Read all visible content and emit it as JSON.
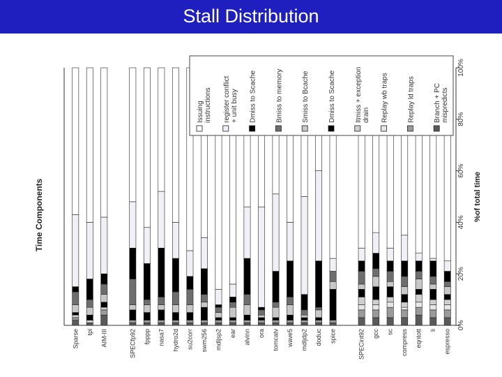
{
  "slide": {
    "title": "Stall Distribution",
    "title_bar_color": "#1f1fbf"
  },
  "chart_data": {
    "type": "bar",
    "stacked": true,
    "orientation": "vertical",
    "ylabel": "Time Components",
    "y2label": "%of total time",
    "ylim": [
      0,
      100
    ],
    "yticks": [
      "0%",
      "20%",
      "40%",
      "60%",
      "80%",
      "100%"
    ],
    "categories": [
      "Sparse",
      "tpl",
      "AIM-III",
      "SPECfp92",
      "fpppp",
      "nasa7",
      "hydro2d",
      "su2corr",
      "swm256",
      "mdljsp2",
      "ear",
      "alvinn",
      "ora",
      "tomcatv",
      "wave5",
      "mdljdp2",
      "doduc",
      "spice",
      "SPECint92",
      "gcc",
      "sc",
      "compress",
      "eqntott",
      "li",
      "espresso"
    ],
    "gaps_after": [
      2,
      17
    ],
    "series": [
      {
        "name": "Branch + PC mispredicts",
        "color": "#5a5a5a",
        "values": [
          2,
          1,
          4,
          1,
          1,
          1,
          1,
          1,
          1,
          1,
          1,
          1,
          1,
          1,
          1,
          1,
          1,
          1,
          3,
          3,
          3,
          3,
          4,
          3,
          3
        ]
      },
      {
        "name": "Replay ld traps",
        "color": "#9a9a9a",
        "values": [
          1,
          0,
          2,
          1,
          1,
          1,
          1,
          1,
          1,
          1,
          1,
          1,
          1,
          1,
          1,
          1,
          1,
          1,
          3,
          3,
          4,
          3,
          3,
          3,
          3
        ]
      },
      {
        "name": "Replay wb traps",
        "color": "#e6e6e6",
        "values": [
          0,
          0,
          0,
          0,
          0,
          0,
          0,
          0,
          0,
          0,
          0,
          0,
          0,
          0,
          0,
          0,
          0,
          0,
          2,
          2,
          2,
          1,
          2,
          2,
          2
        ]
      },
      {
        "name": "Itmiss + exception drain",
        "color": "#cfcfcf",
        "values": [
          1,
          1,
          1,
          0,
          0,
          0,
          0,
          0,
          0,
          0,
          0,
          0,
          0,
          0,
          0,
          0,
          0,
          0,
          3,
          2,
          2,
          2,
          3,
          2,
          2
        ]
      },
      {
        "name": "Dmiss to Scache",
        "color": "#000000",
        "values": [
          1,
          2,
          2,
          4,
          3,
          4,
          3,
          3,
          5,
          1,
          1,
          2,
          1,
          1,
          2,
          1,
          1,
          12,
          3,
          5,
          4,
          3,
          2,
          4,
          2
        ]
      },
      {
        "name": "Smiss to Bcache",
        "color": "#c8c8c8",
        "values": [
          3,
          3,
          3,
          2,
          3,
          2,
          3,
          3,
          2,
          2,
          4,
          4,
          1,
          4,
          4,
          1,
          3,
          3,
          2,
          4,
          2,
          3,
          4,
          2,
          3
        ]
      },
      {
        "name": "Bmiss to memory",
        "color": "#6e6e6e",
        "values": [
          5,
          3,
          4,
          10,
          2,
          3,
          5,
          6,
          3,
          2,
          2,
          4,
          2,
          2,
          3,
          2,
          1,
          4,
          5,
          3,
          4,
          4,
          3,
          3,
          2
        ]
      },
      {
        "name": "Dmiss to Scache",
        "color": "#000000",
        "values": [
          2,
          8,
          4,
          12,
          14,
          19,
          13,
          5,
          10,
          1,
          2,
          14,
          1,
          12,
          14,
          6,
          18,
          0,
          4,
          6,
          4,
          6,
          4,
          6,
          4
        ]
      },
      {
        "name": "register conflict + unit busy",
        "color": "#f0f0f6",
        "values": [
          28,
          22,
          22,
          18,
          14,
          22,
          14,
          10,
          12,
          6,
          5,
          20,
          39,
          30,
          15,
          38,
          35,
          5,
          5,
          8,
          5,
          10,
          3,
          1,
          4
        ]
      },
      {
        "name": "Issuing instructions",
        "color": "#ffffff",
        "values": [
          57,
          60,
          58,
          52,
          62,
          48,
          60,
          71,
          66,
          86,
          84,
          54,
          54,
          50,
          60,
          51,
          40,
          75,
          70,
          64,
          70,
          65,
          72,
          74,
          75
        ]
      }
    ]
  }
}
